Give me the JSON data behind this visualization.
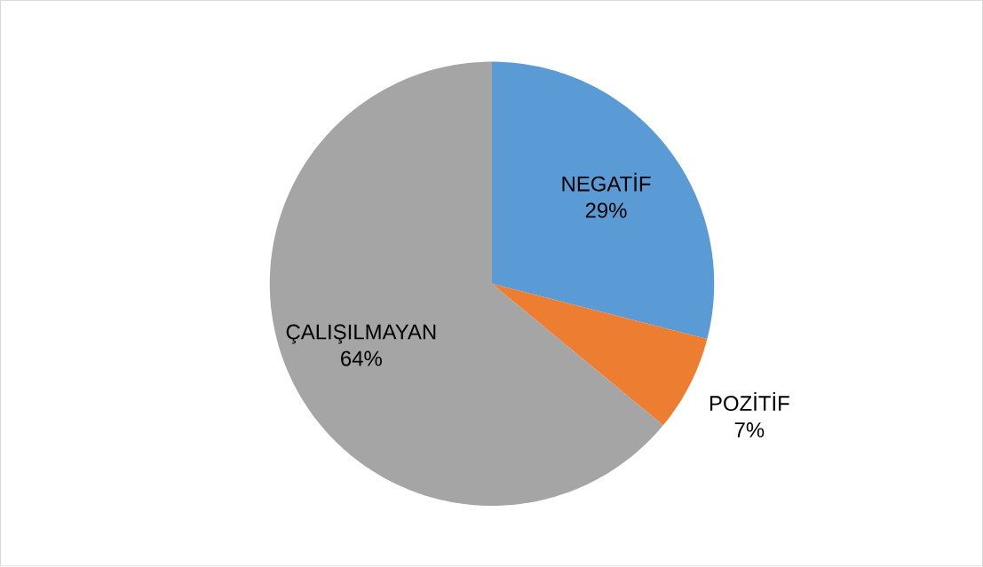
{
  "chart_data": {
    "type": "pie",
    "categories": [
      "NEGATİF",
      "POZİTİF",
      "ÇALIŞILMAYAN"
    ],
    "values": [
      29,
      7,
      64
    ],
    "colors": [
      "#5b9bd5",
      "#ed7d31",
      "#a5a5a5"
    ],
    "value_labels": [
      "29%",
      "7%",
      "64%"
    ]
  }
}
